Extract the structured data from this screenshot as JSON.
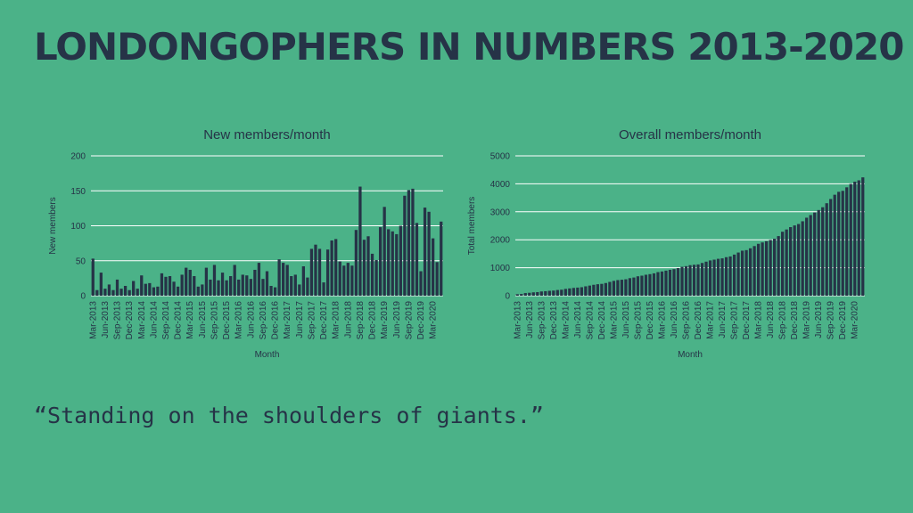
{
  "slide": {
    "title": "LondonGophers in numbers 2013-2020",
    "quote": "“Standing on the shoulders of giants.”"
  },
  "colors": {
    "background": "#4bb288",
    "bars": "#263347",
    "text": "#263347",
    "gridlines": "#ffffff"
  },
  "chart_data": [
    {
      "type": "bar",
      "title": "New members/month",
      "xlabel": "Month",
      "ylabel": "New members",
      "ylim": [
        0,
        200
      ],
      "yticks": [
        0,
        50,
        100,
        150,
        200
      ],
      "grid": true,
      "tick_labels": [
        "Mar-2013",
        "Jun-2013",
        "Sep-2013",
        "Dec-2013",
        "Mar-2014",
        "Jun-2014",
        "Sep-2014",
        "Dec-2014",
        "Mar-2015",
        "Jun-2015",
        "Sep-2015",
        "Dec-2015",
        "Mar-2016",
        "Jun-2016",
        "Sep-2016",
        "Dec-2016",
        "Mar-2017",
        "Jun-2017",
        "Sep-2017",
        "Dec-2017",
        "Mar-2018",
        "Jun-2018",
        "Sep-2018",
        "Dec-2018",
        "Mar-2019",
        "Jun-2019",
        "Sep-2019",
        "Dec-2019",
        "Mar-2020"
      ],
      "categories": [
        "Mar-2013",
        "Apr-2013",
        "May-2013",
        "Jun-2013",
        "Jul-2013",
        "Aug-2013",
        "Sep-2013",
        "Oct-2013",
        "Nov-2013",
        "Dec-2013",
        "Jan-2014",
        "Feb-2014",
        "Mar-2014",
        "Apr-2014",
        "May-2014",
        "Jun-2014",
        "Jul-2014",
        "Aug-2014",
        "Sep-2014",
        "Oct-2014",
        "Nov-2014",
        "Dec-2014",
        "Jan-2015",
        "Feb-2015",
        "Mar-2015",
        "Apr-2015",
        "May-2015",
        "Jun-2015",
        "Jul-2015",
        "Aug-2015",
        "Sep-2015",
        "Oct-2015",
        "Nov-2015",
        "Dec-2015",
        "Jan-2016",
        "Feb-2016",
        "Mar-2016",
        "Apr-2016",
        "May-2016",
        "Jun-2016",
        "Jul-2016",
        "Aug-2016",
        "Sep-2016",
        "Oct-2016",
        "Nov-2016",
        "Dec-2016",
        "Jan-2017",
        "Feb-2017",
        "Mar-2017",
        "Apr-2017",
        "May-2017",
        "Jun-2017",
        "Jul-2017",
        "Aug-2017",
        "Sep-2017",
        "Oct-2017",
        "Nov-2017",
        "Dec-2017",
        "Jan-2018",
        "Feb-2018",
        "Mar-2018",
        "Apr-2018",
        "May-2018",
        "Jun-2018",
        "Jul-2018",
        "Aug-2018",
        "Sep-2018",
        "Oct-2018",
        "Nov-2018",
        "Dec-2018",
        "Jan-2019",
        "Feb-2019",
        "Mar-2019",
        "Apr-2019",
        "May-2019",
        "Jun-2019",
        "Jul-2019",
        "Aug-2019",
        "Sep-2019",
        "Oct-2019",
        "Nov-2019",
        "Dec-2019",
        "Jan-2020",
        "Feb-2020",
        "Mar-2020",
        "Apr-2020",
        "May-2020"
      ],
      "values": [
        53,
        8,
        33,
        10,
        16,
        8,
        23,
        10,
        14,
        8,
        21,
        10,
        29,
        17,
        18,
        12,
        13,
        32,
        27,
        28,
        20,
        13,
        30,
        40,
        37,
        28,
        13,
        16,
        40,
        23,
        44,
        22,
        33,
        22,
        28,
        44,
        23,
        30,
        29,
        24,
        37,
        47,
        24,
        35,
        14,
        12,
        52,
        47,
        44,
        28,
        30,
        16,
        42,
        26,
        67,
        73,
        67,
        19,
        66,
        79,
        81,
        49,
        43,
        47,
        43,
        94,
        156,
        80,
        85,
        60,
        51,
        98,
        127,
        95,
        92,
        88,
        100,
        143,
        151,
        153,
        104,
        35,
        126,
        120,
        82,
        48,
        106
      ]
    },
    {
      "type": "bar",
      "title": "Overall members/month",
      "xlabel": "Month",
      "ylabel": "Total members",
      "ylim": [
        0,
        5000
      ],
      "yticks": [
        0,
        1000,
        2000,
        3000,
        4000,
        5000
      ],
      "grid": true,
      "tick_labels": [
        "Mar-2013",
        "Jun-2013",
        "Sep-2013",
        "Dec-2013",
        "Mar-2014",
        "Jun-2014",
        "Sep-2014",
        "Dec-2014",
        "Mar-2015",
        "Jun-2015",
        "Sep-2015",
        "Dec-2015",
        "Mar-2016",
        "Jun-2016",
        "Sep-2016",
        "Dec-2016",
        "Mar-2017",
        "Jun-2017",
        "Sep-2017",
        "Dec-2017",
        "Mar-2018",
        "Jun-2018",
        "Sep-2018",
        "Dec-2018",
        "Mar-2019",
        "Jun-2019",
        "Sep-2019",
        "Dec-2019",
        "Mar-2020"
      ],
      "categories": [
        "Mar-2013",
        "Apr-2013",
        "May-2013",
        "Jun-2013",
        "Jul-2013",
        "Aug-2013",
        "Sep-2013",
        "Oct-2013",
        "Nov-2013",
        "Dec-2013",
        "Jan-2014",
        "Feb-2014",
        "Mar-2014",
        "Apr-2014",
        "May-2014",
        "Jun-2014",
        "Jul-2014",
        "Aug-2014",
        "Sep-2014",
        "Oct-2014",
        "Nov-2014",
        "Dec-2014",
        "Jan-2015",
        "Feb-2015",
        "Mar-2015",
        "Apr-2015",
        "May-2015",
        "Jun-2015",
        "Jul-2015",
        "Aug-2015",
        "Sep-2015",
        "Oct-2015",
        "Nov-2015",
        "Dec-2015",
        "Jan-2016",
        "Feb-2016",
        "Mar-2016",
        "Apr-2016",
        "May-2016",
        "Jun-2016",
        "Jul-2016",
        "Aug-2016",
        "Sep-2016",
        "Oct-2016",
        "Nov-2016",
        "Dec-2016",
        "Jan-2017",
        "Feb-2017",
        "Mar-2017",
        "Apr-2017",
        "May-2017",
        "Jun-2017",
        "Jul-2017",
        "Aug-2017",
        "Sep-2017",
        "Oct-2017",
        "Nov-2017",
        "Dec-2017",
        "Jan-2018",
        "Feb-2018",
        "Mar-2018",
        "Apr-2018",
        "May-2018",
        "Jun-2018",
        "Jul-2018",
        "Aug-2018",
        "Sep-2018",
        "Oct-2018",
        "Nov-2018",
        "Dec-2018",
        "Jan-2019",
        "Feb-2019",
        "Mar-2019",
        "Apr-2019",
        "May-2019",
        "Jun-2019",
        "Jul-2019",
        "Aug-2019",
        "Sep-2019",
        "Oct-2019",
        "Nov-2019",
        "Dec-2019",
        "Jan-2020",
        "Feb-2020",
        "Mar-2020",
        "Apr-2020",
        "May-2020"
      ],
      "values": [
        53,
        61,
        94,
        104,
        120,
        128,
        151,
        161,
        175,
        183,
        204,
        214,
        243,
        260,
        278,
        290,
        303,
        335,
        362,
        390,
        410,
        423,
        453,
        493,
        530,
        558,
        571,
        587,
        627,
        650,
        694,
        716,
        749,
        771,
        799,
        843,
        866,
        896,
        925,
        949,
        986,
        1033,
        1057,
        1092,
        1106,
        1118,
        1170,
        1217,
        1261,
        1289,
        1319,
        1335,
        1377,
        1403,
        1470,
        1543,
        1610,
        1629,
        1695,
        1774,
        1855,
        1904,
        1947,
        1994,
        2037,
        2131,
        2287,
        2367,
        2452,
        2512,
        2563,
        2661,
        2788,
        2883,
        2975,
        3063,
        3163,
        3306,
        3457,
        3610,
        3714,
        3749,
        3875,
        3995,
        4077,
        4125,
        4231
      ]
    }
  ]
}
